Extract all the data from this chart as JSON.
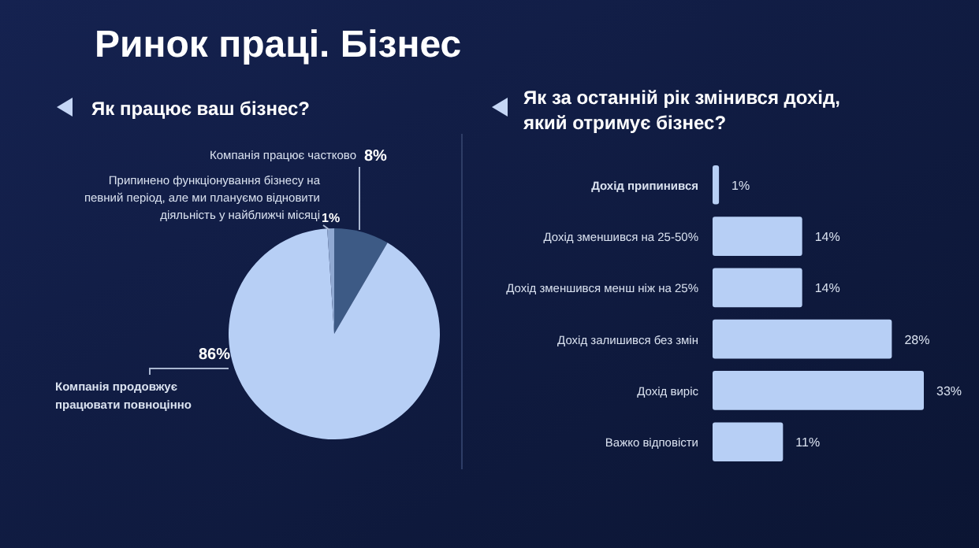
{
  "chart_data": [
    {
      "type": "pie",
      "title": "Ринок праці. Бізнес",
      "subtitle": "Як працює ваш бізнес?",
      "categories": [
        "Компанія працює частково",
        "Компанія продовжує працювати повноцінно",
        "Припинено функціонування бізнесу на певний період, але ми плануємо відновити діяльність у найближчі місяці"
      ],
      "values": [
        8,
        86,
        1
      ],
      "colors": [
        "#3d5a85",
        "#b7cff5",
        "#90a9d2"
      ],
      "value_labels": [
        "8%",
        "86%",
        "1%"
      ]
    },
    {
      "type": "bar",
      "orientation": "horizontal",
      "title": "Як за останній рік змінився дохід, який отримує бізнес?",
      "categories": [
        "Дохід припинився",
        "Дохід зменшився на 25-50%",
        "Дохід зменшився менш ніж на 25%",
        "Дохід залишився без змін",
        "Дохід виріс",
        "Важко відповісти"
      ],
      "values": [
        1,
        14,
        14,
        28,
        33,
        11
      ],
      "color": "#b7cff5",
      "value_labels": [
        "1%",
        "14%",
        "14%",
        "28%",
        "33%",
        "11%"
      ]
    }
  ]
}
